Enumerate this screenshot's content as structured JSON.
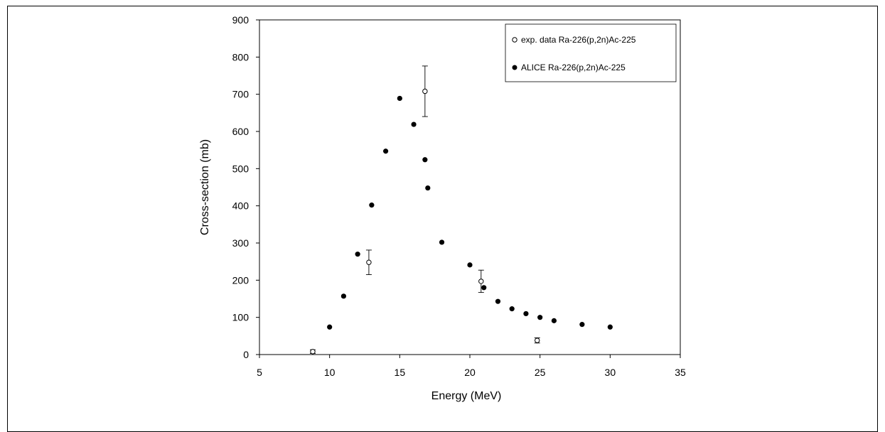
{
  "chart_data": {
    "type": "scatter",
    "xlabel": "Energy (MeV)",
    "ylabel": "Cross-section (mb)",
    "xlim": [
      5,
      35
    ],
    "ylim": [
      0,
      900
    ],
    "xticks": [
      "5",
      "10",
      "15",
      "20",
      "25",
      "30",
      "35"
    ],
    "yticks": [
      "0",
      "100",
      "200",
      "300",
      "400",
      "500",
      "600",
      "700",
      "800",
      "900"
    ],
    "grid": false,
    "legend_position": "top-right",
    "series": [
      {
        "name": "exp. data Ra-226(p,2n)Ac-225",
        "marker": "open-circle",
        "points": [
          {
            "x": 8.8,
            "y": 8,
            "err": 5
          },
          {
            "x": 12.8,
            "y": 248,
            "err": 33
          },
          {
            "x": 16.8,
            "y": 708,
            "err": 68
          },
          {
            "x": 20.8,
            "y": 197,
            "err": 30
          },
          {
            "x": 24.8,
            "y": 38,
            "err": 7
          }
        ]
      },
      {
        "name": "ALICE Ra-226(p,2n)Ac-225",
        "marker": "filled-circle",
        "points": [
          {
            "x": 10,
            "y": 74
          },
          {
            "x": 11,
            "y": 157
          },
          {
            "x": 12,
            "y": 270
          },
          {
            "x": 13,
            "y": 402
          },
          {
            "x": 14,
            "y": 547
          },
          {
            "x": 15,
            "y": 689
          },
          {
            "x": 16,
            "y": 619
          },
          {
            "x": 16.8,
            "y": 524
          },
          {
            "x": 17,
            "y": 448
          },
          {
            "x": 18,
            "y": 302
          },
          {
            "x": 20,
            "y": 241
          },
          {
            "x": 21,
            "y": 180
          },
          {
            "x": 22,
            "y": 143
          },
          {
            "x": 23,
            "y": 123
          },
          {
            "x": 24,
            "y": 110
          },
          {
            "x": 25,
            "y": 100
          },
          {
            "x": 26,
            "y": 91
          },
          {
            "x": 28,
            "y": 81
          },
          {
            "x": 30,
            "y": 74
          }
        ]
      }
    ]
  }
}
